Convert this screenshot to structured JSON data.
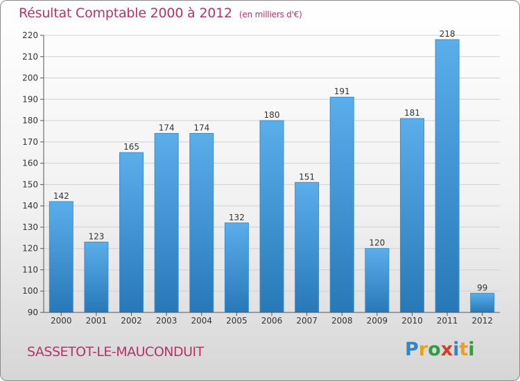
{
  "header": {
    "title": "Résultat Comptable 2000 à 2012",
    "subtitle": "(en milliers d'€)"
  },
  "footer": {
    "commune": "SASSETOT-LE-MAUCONDUIT",
    "logo_text": "Proxiti",
    "logo_letters": [
      {
        "ch": "P",
        "color": "#2e86c8"
      },
      {
        "ch": "r",
        "color": "#e8a21a"
      },
      {
        "ch": "o",
        "color": "#2e9e3e"
      },
      {
        "ch": "x",
        "color": "#d63a2a"
      },
      {
        "ch": "i",
        "color": "#2e86c8"
      },
      {
        "ch": "t",
        "color": "#e8a21a"
      },
      {
        "ch": "i",
        "color": "#2e9e3e"
      }
    ]
  },
  "colors": {
    "accent": "#b8326a",
    "bar_light": "#5aaeea",
    "bar_dark": "#2878b8",
    "grid": "#d0d0d0"
  },
  "chart_data": {
    "type": "bar",
    "title": "Résultat Comptable 2000 à 2012",
    "subtitle": "(en milliers d'€)",
    "categories": [
      "2000",
      "2001",
      "2002",
      "2003",
      "2004",
      "2005",
      "2006",
      "2007",
      "2008",
      "2009",
      "2010",
      "2011",
      "2012"
    ],
    "values": [
      142,
      123,
      165,
      174,
      174,
      132,
      180,
      151,
      191,
      120,
      181,
      218,
      99
    ],
    "xlabel": "",
    "ylabel": "",
    "ylim": [
      90,
      220
    ],
    "yticks": [
      90,
      100,
      110,
      120,
      130,
      140,
      150,
      160,
      170,
      180,
      190,
      200,
      210,
      220
    ],
    "grid": true,
    "data_labels": true
  }
}
